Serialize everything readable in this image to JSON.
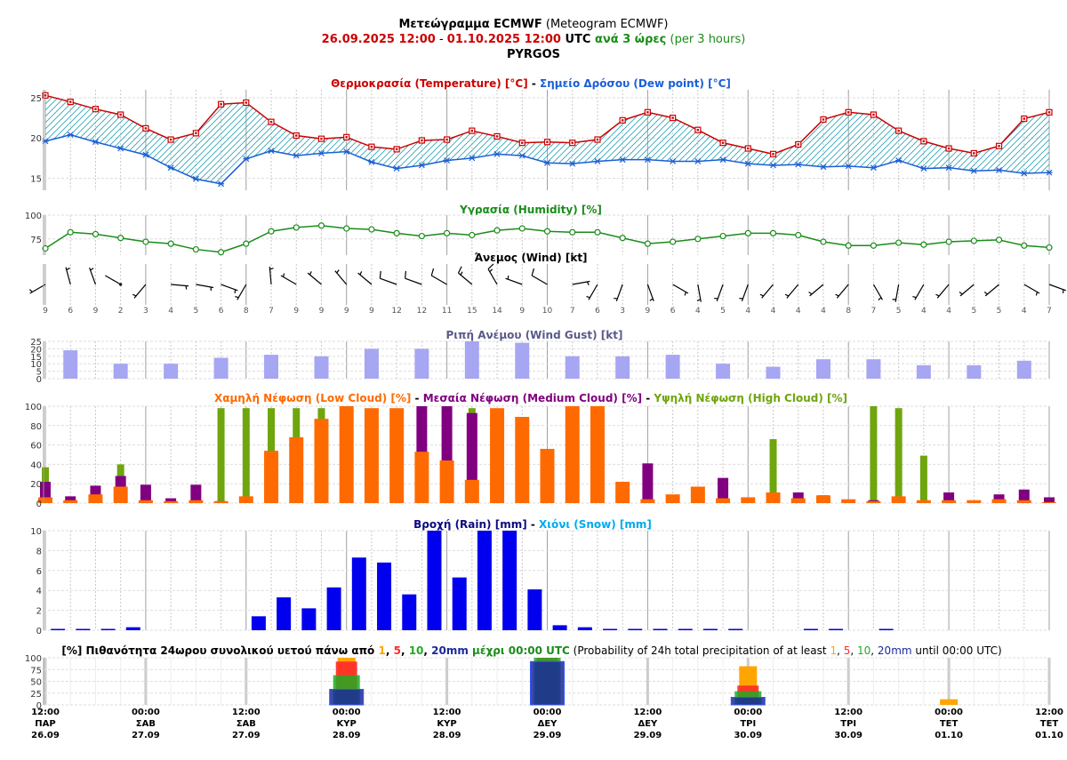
{
  "header": {
    "title_bold": "Μετεώγραμμα ECMWF",
    "title_rest": " (Meteogram ECMWF)",
    "range_start": "26.09.2025 12:00",
    "range_dash": " - ",
    "range_end": "01.10.2025 12:00",
    "range_utc": " UTC ",
    "range_step": "ανά 3 ώρες",
    "range_step_en": " (per 3 hours)",
    "location": "PYRGOS"
  },
  "colors": {
    "temp": "#cc0000",
    "dew": "#1a5fd6",
    "hatch": "#2aa3b5",
    "humidity": "#1a8c1a",
    "gust": "#a6a6f2",
    "low": "#ff6a00",
    "medium": "#800080",
    "high": "#6fa50d",
    "rain": "#0000ee",
    "snow": "#00aaee",
    "p1": "#ffa500",
    "p5": "#ff2a2a",
    "p10": "#22aa22",
    "p20": "#1a2a9a"
  },
  "charts": {
    "temperature": {
      "title_a": "Θερμοκρασία (Temperature) [°C]",
      "title_sep": " - ",
      "title_b": "Σημείο Δρόσου (Dew point) [°C]",
      "yticks": [
        "25",
        "20",
        "15"
      ]
    },
    "humidity": {
      "title": "Υγρασία (Humidity) [%]",
      "yticks": [
        "100",
        "75"
      ]
    },
    "wind": {
      "title": "Άνεμος (Wind) [kt]"
    },
    "gust": {
      "title": "Ριπή Ανέμου (Wind Gust) [kt]",
      "yticks": [
        "25",
        "20",
        "15",
        "10",
        "5",
        "0"
      ]
    },
    "cloud": {
      "title_low": "Χαμηλή Νέφωση (Low Cloud) [%]",
      "title_sep1": " - ",
      "title_med": "Μεσαία Νέφωση (Medium Cloud) [%]",
      "title_sep2": " - ",
      "title_high": "Υψηλή Νέφωση (High Cloud) [%]",
      "yticks": [
        "100",
        "80",
        "60",
        "40",
        "20",
        "0"
      ]
    },
    "rain": {
      "title_rain": "Βροχή (Rain) [mm]",
      "title_sep": " - ",
      "title_snow": "Χιόνι (Snow) [mm]",
      "yticks": [
        "10",
        "8",
        "6",
        "4",
        "2",
        "0"
      ]
    },
    "prob": {
      "title_a": "[%] Πιθανότητα 24ωρου συνολικού υετού πάνω από ",
      "th1": "1",
      "sep1": ", ",
      "th5": "5",
      "sep2": ", ",
      "th10": "10",
      "sep3": ", ",
      "th20": "20mm",
      "title_b": " μέχρι 00:00 UTC",
      "title_c": " (Probability of 24h total precipitation of at least ",
      "th1b": "1",
      "sep1b": ", ",
      "th5b": "5",
      "sep2b": ", ",
      "th10b": "10",
      "sep3b": ", ",
      "th20b": "20mm",
      "title_d": " until 00:00 UTC)",
      "yticks": [
        "100",
        "75",
        "50",
        "25",
        "0"
      ]
    }
  },
  "chart_data": [
    {
      "type": "line",
      "name": "temperature",
      "x_step_hours": 3,
      "ylim": [
        13.5,
        26
      ],
      "series": [
        {
          "name": "Θερμοκρασία (Temperature) [°C]",
          "values": [
            25.3,
            24.5,
            23.6,
            22.9,
            21.2,
            19.8,
            20.6,
            24.2,
            24.4,
            22.0,
            20.3,
            19.9,
            20.1,
            18.9,
            18.6,
            19.7,
            19.8,
            20.9,
            20.2,
            19.4,
            19.5,
            19.4,
            19.8,
            22.2,
            23.2,
            22.5,
            21.0,
            19.4,
            18.7,
            18.0,
            19.2,
            22.3,
            23.2,
            22.9,
            20.9,
            19.6,
            18.7,
            18.1,
            19.0,
            22.4,
            23.2
          ]
        },
        {
          "name": "Σημείο Δρόσου (Dew point) [°C]",
          "values": [
            19.6,
            20.4,
            19.5,
            18.7,
            17.9,
            16.3,
            14.9,
            14.3,
            17.4,
            18.4,
            17.8,
            18.1,
            18.3,
            17.0,
            16.2,
            16.6,
            17.2,
            17.5,
            18.0,
            17.8,
            16.9,
            16.8,
            17.1,
            17.3,
            17.3,
            17.1,
            17.1,
            17.3,
            16.8,
            16.6,
            16.7,
            16.4,
            16.5,
            16.3,
            17.2,
            16.2,
            16.3,
            15.9,
            16.0,
            15.6,
            15.7
          ]
        }
      ]
    },
    {
      "type": "line",
      "name": "humidity",
      "ylim": [
        58,
        100
      ],
      "series": [
        {
          "name": "Υγρασία (Humidity) [%]",
          "values": [
            65,
            82,
            80,
            76,
            72,
            70,
            64,
            61,
            70,
            83,
            87,
            89,
            86,
            85,
            81,
            78,
            81,
            79,
            84,
            86,
            83,
            82,
            82,
            76,
            70,
            72,
            75,
            78,
            81,
            81,
            79,
            72,
            68,
            68,
            71,
            69,
            72,
            73,
            74,
            68,
            66
          ]
        }
      ]
    },
    {
      "type": "table",
      "name": "wind",
      "speeds_kt": [
        9,
        6,
        9,
        2,
        3,
        4,
        5,
        6,
        8,
        7,
        9,
        9,
        9,
        9,
        12,
        12,
        11,
        15,
        14,
        9,
        10,
        7,
        6,
        3,
        9,
        6,
        4,
        5,
        4,
        4,
        4,
        4,
        8,
        7,
        5,
        4,
        4,
        5,
        5,
        4,
        7
      ],
      "speed_labels": [
        "9",
        "6",
        "9",
        "2",
        "3",
        "4",
        "5",
        "6",
        "8",
        "7",
        "9",
        "9",
        "9",
        "9",
        "12",
        "12",
        "11",
        "15",
        "14",
        "9",
        "10",
        "7",
        "6",
        "3",
        "9",
        "6",
        "4",
        "5",
        "4",
        "4",
        "4",
        "4",
        "8",
        "7",
        "5",
        "4",
        "4",
        "5",
        "5",
        "4",
        "7"
      ],
      "directions_deg": [
        240,
        345,
        340,
        300,
        220,
        95,
        100,
        110,
        210,
        355,
        300,
        310,
        320,
        310,
        290,
        290,
        300,
        310,
        330,
        290,
        300,
        80,
        210,
        200,
        160,
        120,
        170,
        200,
        200,
        220,
        220,
        230,
        220,
        150,
        190,
        210,
        220,
        230,
        230,
        120,
        110
      ]
    },
    {
      "type": "bar",
      "name": "gust",
      "ylim": [
        0,
        25
      ],
      "values": [
        19,
        10,
        10,
        14,
        16,
        15,
        20,
        20,
        25,
        24,
        15,
        15,
        16,
        10,
        8,
        13,
        13,
        9,
        9,
        12
      ],
      "positions_3h_index": [
        2,
        4,
        6,
        8,
        10,
        12,
        14,
        16,
        18,
        20,
        22,
        24,
        26,
        28,
        30,
        32,
        34,
        36,
        38,
        40
      ]
    },
    {
      "type": "bar",
      "name": "cloud",
      "ylim": [
        0,
        100
      ],
      "series": [
        {
          "name": "Χαμηλή Νέφωση (Low Cloud) [%]",
          "values": [
            6,
            3,
            9,
            17,
            3,
            2,
            3,
            2,
            7,
            54,
            68,
            87,
            100,
            98,
            98,
            53,
            44,
            24,
            98,
            89,
            56,
            100,
            100,
            22,
            4,
            9,
            17,
            5,
            6,
            11,
            5,
            8,
            4,
            2,
            7,
            3,
            3,
            3,
            4,
            3,
            1
          ]
        },
        {
          "name": "Μεσαία Νέφωση (Medium Cloud) [%]",
          "values": [
            22,
            7,
            18,
            28,
            19,
            5,
            19,
            2,
            0,
            0,
            0,
            0,
            0,
            0,
            0,
            100,
            100,
            93,
            0,
            0,
            0,
            0,
            0,
            0,
            41,
            0,
            0,
            26,
            0,
            0,
            11,
            8,
            0,
            3,
            0,
            0,
            11,
            0,
            9,
            14,
            6
          ]
        },
        {
          "name": "Υψηλή Νέφωση (High Cloud) [%]",
          "values": [
            37,
            0,
            0,
            40,
            0,
            0,
            0,
            98,
            98,
            98,
            98,
            98,
            0,
            0,
            0,
            0,
            0,
            98,
            0,
            0,
            0,
            0,
            0,
            0,
            0,
            0,
            0,
            0,
            0,
            66,
            0,
            0,
            0,
            100,
            98,
            49,
            0,
            0,
            0,
            0,
            0
          ]
        }
      ]
    },
    {
      "type": "bar",
      "name": "rain",
      "ylim": [
        0,
        10
      ],
      "series": [
        {
          "name": "Βροχή (Rain) [mm]",
          "values": [
            0,
            0.1,
            0.1,
            0.1,
            0.3,
            0,
            0,
            0,
            0,
            1.4,
            3.3,
            2.2,
            4.3,
            7.3,
            6.8,
            3.6,
            10,
            5.3,
            10,
            10,
            4.1,
            0.5,
            0.3,
            0.1,
            0.1,
            0.1,
            0.1,
            0.1,
            0.1,
            0,
            0,
            0.1,
            0.1,
            0,
            0.1,
            0,
            0,
            0,
            0,
            0,
            0
          ]
        },
        {
          "name": "Χιόνι (Snow) [mm]",
          "values": [
            0,
            0,
            0,
            0,
            0,
            0,
            0,
            0,
            0,
            0,
            0,
            0,
            0,
            0,
            0,
            0,
            0,
            0,
            0,
            0,
            0,
            0,
            0,
            0,
            0,
            0,
            0,
            0,
            0,
            0,
            0,
            0,
            0,
            0,
            0,
            0,
            0,
            0,
            0,
            0,
            0
          ]
        }
      ]
    },
    {
      "type": "bar",
      "name": "precip_probability",
      "ylim": [
        0,
        100
      ],
      "categories": [
        "28.09 00:00",
        "29.09 00:00",
        "30.09 00:00",
        "01.10 00:00"
      ],
      "positions_3h_index": [
        12,
        20,
        28,
        36
      ],
      "series": [
        {
          "name": "1",
          "values": [
            100,
            100,
            82,
            12
          ]
        },
        {
          "name": "5",
          "values": [
            92,
            100,
            41,
            0
          ]
        },
        {
          "name": "10",
          "values": [
            63,
            100,
            29,
            0
          ]
        },
        {
          "name": "20mm",
          "values": [
            33,
            92,
            16,
            0
          ]
        }
      ]
    }
  ],
  "x_axis": {
    "ticks": [
      {
        "time": "12:00",
        "day": "ΠΑΡ",
        "date": "26.09"
      },
      {
        "time": "00:00",
        "day": "ΣΑΒ",
        "date": "27.09"
      },
      {
        "time": "12:00",
        "day": "ΣΑΒ",
        "date": "27.09"
      },
      {
        "time": "00:00",
        "day": "ΚΥΡ",
        "date": "28.09"
      },
      {
        "time": "12:00",
        "day": "ΚΥΡ",
        "date": "28.09"
      },
      {
        "time": "00:00",
        "day": "ΔΕΥ",
        "date": "29.09"
      },
      {
        "time": "12:00",
        "day": "ΔΕΥ",
        "date": "29.09"
      },
      {
        "time": "00:00",
        "day": "ΤΡΙ",
        "date": "30.09"
      },
      {
        "time": "12:00",
        "day": "ΤΡΙ",
        "date": "30.09"
      },
      {
        "time": "00:00",
        "day": "ΤΕΤ",
        "date": "01.10"
      },
      {
        "time": "12:00",
        "day": "ΤΕΤ",
        "date": "01.10"
      }
    ]
  }
}
